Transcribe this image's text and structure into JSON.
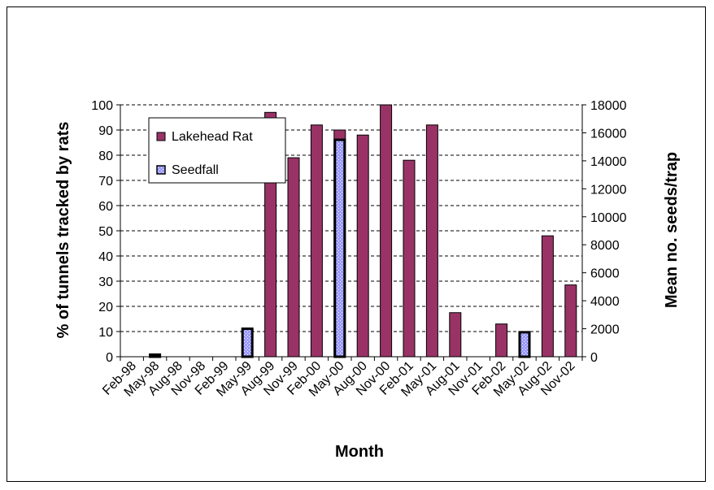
{
  "chart_data": {
    "type": "bar",
    "xlabel": "Month",
    "ylabel_left": "% of tunnels tracked by rats",
    "ylabel_right": "Mean no. seeds/trap",
    "ylim_left": [
      0,
      100
    ],
    "ylim_right": [
      0,
      18000
    ],
    "yticks_left": [
      0,
      10,
      20,
      30,
      40,
      50,
      60,
      70,
      80,
      90,
      100
    ],
    "yticks_right": [
      0,
      2000,
      4000,
      6000,
      8000,
      10000,
      12000,
      14000,
      16000,
      18000
    ],
    "grid": true,
    "legend_position": "top-left",
    "categories": [
      "Feb-98",
      "May-98",
      "Aug-98",
      "Nov-98",
      "Feb-99",
      "May-99",
      "Aug-99",
      "Nov-99",
      "Feb-00",
      "May-00",
      "Aug-00",
      "Nov-00",
      "Feb-01",
      "May-01",
      "Aug-01",
      "Nov-01",
      "Feb-02",
      "May-02",
      "Aug-02",
      "Nov-02"
    ],
    "series": [
      {
        "name": "Lakehead Rat",
        "axis": "left",
        "color": "#993366",
        "values": [
          null,
          null,
          null,
          null,
          null,
          null,
          97,
          79,
          92,
          90,
          88,
          100,
          78,
          92,
          17.5,
          null,
          13,
          null,
          48,
          28.5
        ]
      },
      {
        "name": "Seedfall",
        "axis": "right",
        "color": "#9999FF",
        "values": [
          null,
          150,
          null,
          null,
          null,
          2000,
          null,
          null,
          null,
          15500,
          null,
          null,
          null,
          null,
          null,
          null,
          null,
          1750,
          null,
          null
        ]
      }
    ]
  }
}
